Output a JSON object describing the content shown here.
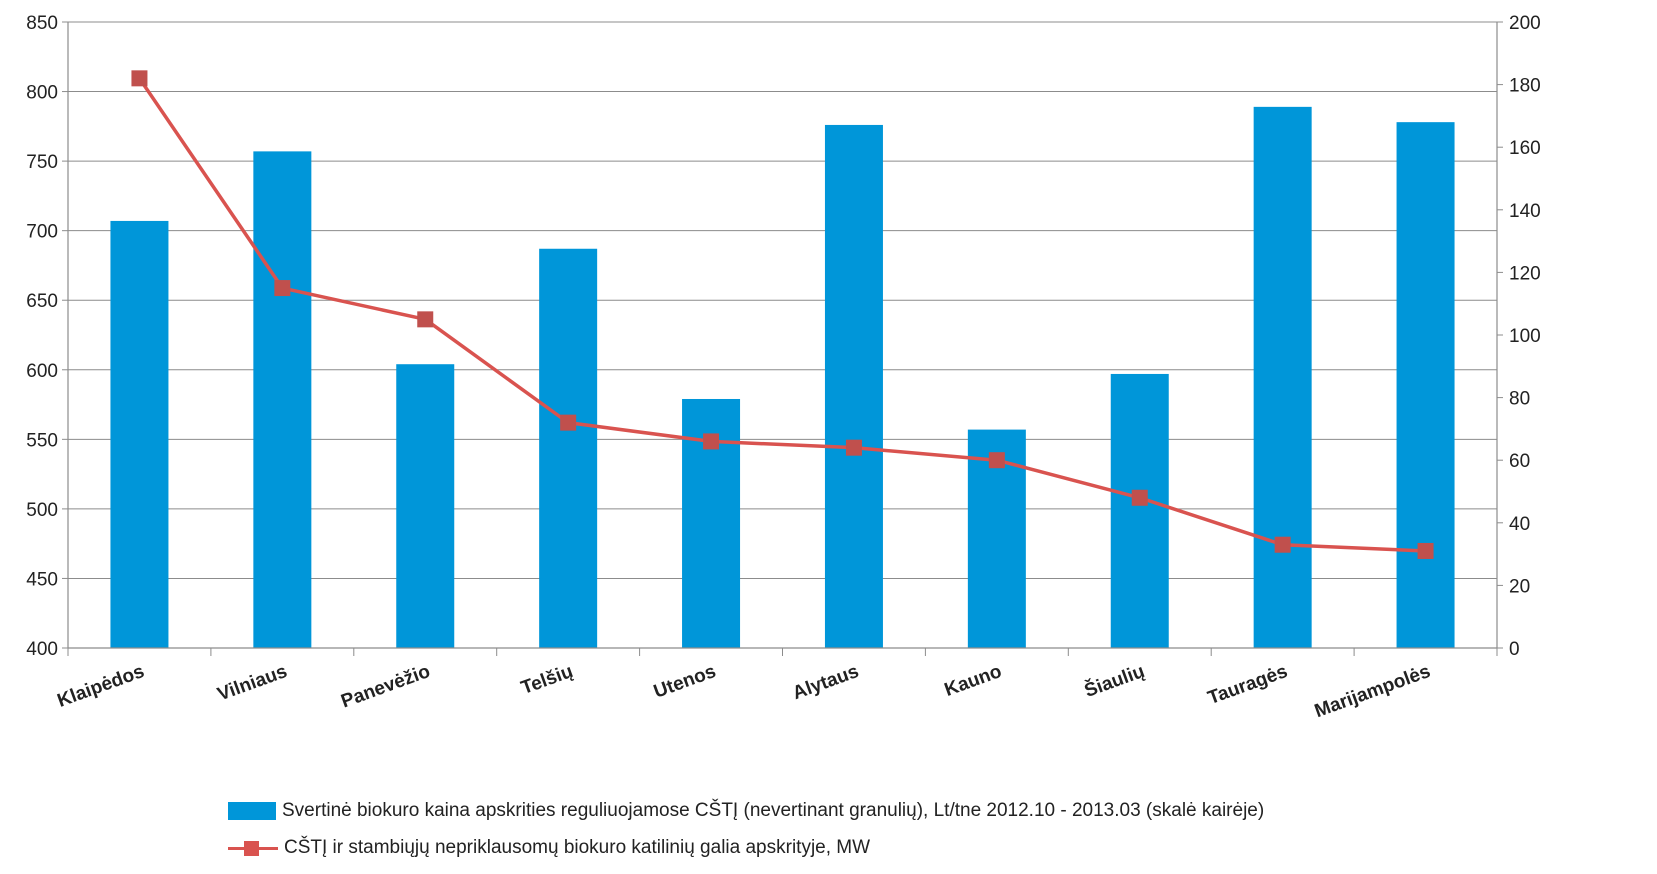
{
  "chart_data": {
    "type": "bar",
    "categories": [
      "Klaipėdos",
      "Vilniaus",
      "Panevėžio",
      "Telšių",
      "Utenos",
      "Alytaus",
      "Kauno",
      "Šiaulių",
      "Tauragės",
      "Marijampolės"
    ],
    "series": [
      {
        "name": "Svertinė biokuro kaina apskrities reguliuojamose CŠTĮ (nevertinant granulių),  Lt/tne 2012.10 - 2013.03 (skalė kairėje)",
        "type": "bar",
        "axis": "left",
        "color": "#0096d9",
        "values": [
          707,
          757,
          604,
          687,
          579,
          776,
          557,
          597,
          789,
          778
        ]
      },
      {
        "name": "CŠTĮ ir stambiųjų nepriklausomų biokuro katilinių galia apskrityje, MW",
        "type": "line",
        "axis": "right",
        "color": "#d9534f",
        "values": [
          182,
          115,
          105,
          72,
          66,
          64,
          60,
          48,
          33,
          31
        ]
      }
    ],
    "y_left": {
      "ylim": [
        400,
        850
      ],
      "ticks": [
        400,
        450,
        500,
        550,
        600,
        650,
        700,
        750,
        800,
        850
      ]
    },
    "y_right": {
      "ylim": [
        0,
        200
      ],
      "ticks": [
        0,
        20,
        40,
        60,
        80,
        100,
        120,
        140,
        160,
        180,
        200
      ]
    },
    "grid": true,
    "legend_position": "bottom"
  }
}
